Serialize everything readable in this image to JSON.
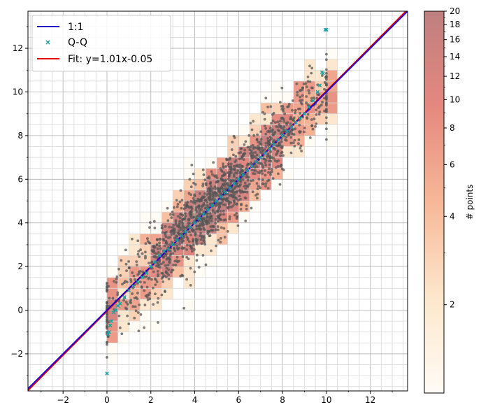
{
  "chart_data": {
    "type": "scatter",
    "title": "",
    "xlabel": "",
    "ylabel": "",
    "xlim": [
      -3.6,
      13.7
    ],
    "ylim": [
      -3.7,
      13.7
    ],
    "x_ticks": [
      -2,
      0,
      2,
      4,
      6,
      8,
      10,
      12
    ],
    "y_ticks": [
      -2,
      0,
      2,
      4,
      6,
      8,
      10,
      12
    ],
    "tick_labels_x": [
      "−2",
      "0",
      "2",
      "4",
      "6",
      "8",
      "10",
      "12"
    ],
    "tick_labels_y": [
      "−2",
      "0",
      "2",
      "4",
      "6",
      "8",
      "10",
      "12"
    ],
    "grid": "minor+major",
    "legend": {
      "placement": "top-left",
      "entries": [
        {
          "label": "1:1",
          "color": "#1f00c8",
          "marker": "line"
        },
        {
          "label": "Q-Q",
          "color": "#17a3a3",
          "marker": "x"
        },
        {
          "label": "Fit: y=1.01x-0.05",
          "color": "#e00000",
          "marker": "line"
        }
      ]
    },
    "lines": [
      {
        "name": "1:1",
        "slope": 1.0,
        "intercept": 0.0,
        "color": "#2200cc"
      },
      {
        "name": "Fit: y=1.01x-0.05",
        "slope": 1.01,
        "intercept": -0.05,
        "color": "#e00000"
      }
    ],
    "qq_points": [
      [
        0.0,
        -2.9
      ],
      [
        0.05,
        -1.1
      ],
      [
        0.1,
        -1.0
      ],
      [
        0.15,
        -0.7
      ],
      [
        0.2,
        -0.5
      ],
      [
        0.3,
        -0.1
      ],
      [
        0.4,
        0.0
      ],
      [
        0.5,
        0.2
      ],
      [
        0.6,
        0.3
      ],
      [
        0.8,
        0.6
      ],
      [
        1.0,
        0.9
      ],
      [
        1.2,
        1.1
      ],
      [
        1.4,
        1.3
      ],
      [
        1.6,
        1.5
      ],
      [
        1.8,
        1.7
      ],
      [
        2.0,
        2.0
      ],
      [
        2.2,
        2.2
      ],
      [
        2.4,
        2.5
      ],
      [
        2.6,
        2.7
      ],
      [
        2.8,
        2.8
      ],
      [
        3.0,
        3.0
      ],
      [
        3.2,
        3.2
      ],
      [
        3.4,
        3.4
      ],
      [
        3.6,
        3.6
      ],
      [
        3.8,
        3.8
      ],
      [
        4.0,
        4.0
      ],
      [
        4.2,
        4.2
      ],
      [
        4.4,
        4.4
      ],
      [
        4.6,
        4.6
      ],
      [
        4.8,
        4.8
      ],
      [
        5.0,
        5.0
      ],
      [
        5.2,
        5.2
      ],
      [
        5.4,
        5.4
      ],
      [
        5.6,
        5.6
      ],
      [
        5.8,
        5.8
      ],
      [
        6.0,
        6.0
      ],
      [
        6.2,
        6.2
      ],
      [
        6.4,
        6.4
      ],
      [
        6.6,
        6.6
      ],
      [
        6.8,
        6.8
      ],
      [
        7.0,
        7.0
      ],
      [
        7.2,
        7.2
      ],
      [
        7.4,
        7.4
      ],
      [
        7.6,
        7.6
      ],
      [
        7.8,
        7.8
      ],
      [
        8.0,
        8.0
      ],
      [
        8.2,
        8.2
      ],
      [
        8.4,
        8.4
      ],
      [
        8.6,
        8.6
      ],
      [
        8.8,
        8.8
      ],
      [
        9.0,
        9.0
      ],
      [
        9.2,
        9.3
      ],
      [
        9.4,
        9.6
      ],
      [
        9.6,
        10.0
      ],
      [
        9.7,
        10.3
      ],
      [
        9.8,
        10.9
      ],
      [
        9.85,
        10.85
      ],
      [
        9.95,
        12.85
      ],
      [
        10.0,
        12.85
      ]
    ],
    "colorbar": {
      "label": "# points",
      "scale": "log",
      "ticks": [
        2,
        4,
        6,
        8,
        10,
        12,
        14,
        16,
        18,
        20
      ],
      "tick_labels": [
        "2",
        "4",
        "6",
        "8",
        "10",
        "12",
        "14",
        "16",
        "18",
        "20"
      ],
      "vmin": 1,
      "vmax": 20
    },
    "heatmap_bin_size": 0.5
  }
}
